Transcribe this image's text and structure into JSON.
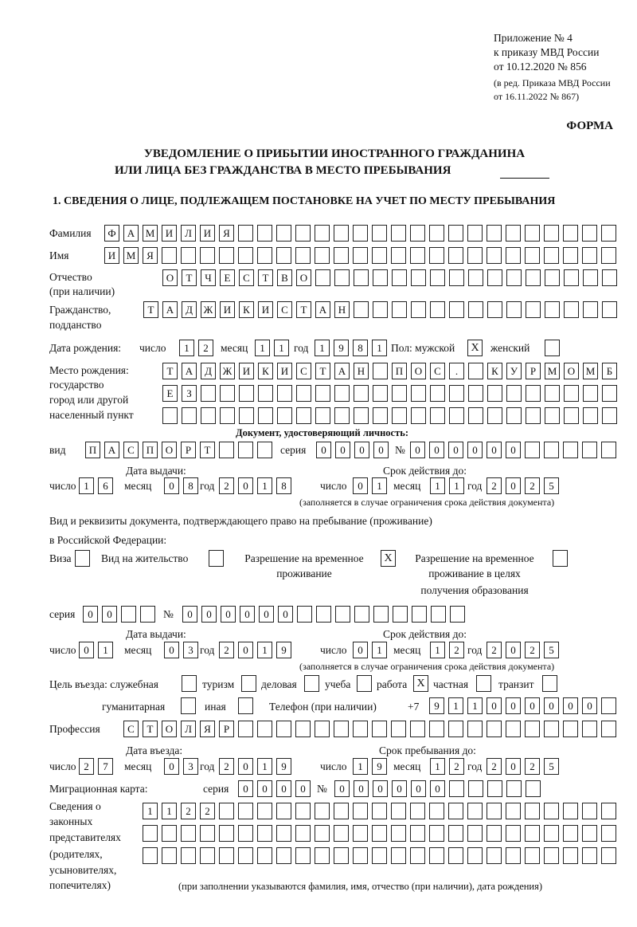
{
  "header": {
    "appendix": [
      "Приложение № 4",
      "к приказу МВД России",
      "от 10.12.2020 № 856"
    ],
    "revision": [
      "(в ред. Приказа МВД России",
      "от 16.11.2022 № 867)"
    ],
    "form_label": "ФОРМА",
    "title_line1": "УВЕДОМЛЕНИЕ О ПРИБЫТИИ ИНОСТРАННОГО ГРАЖДАНИНА",
    "title_line2": "ИЛИ ЛИЦА БЕЗ ГРАЖДАНСТВА В МЕСТО ПРЕБЫВАНИЯ",
    "section1": "1. СВЕДЕНИЯ О ЛИЦЕ, ПОДЛЕЖАЩЕМ ПОСТАНОВКЕ НА УЧЕТ ПО МЕСТУ ПРЕБЫВАНИЯ"
  },
  "labels": {
    "surname": "Фамилия",
    "name": "Имя",
    "patronymic": "Отчество",
    "patronymic_note": "(при наличии)",
    "citizenship": "Гражданство,",
    "citizenship2": "подданство",
    "birth_date": "Дата рождения:",
    "day": "число",
    "month": "месяц",
    "year": "год",
    "sex": "Пол: мужской",
    "female": "женский",
    "birth_place": [
      "Место рождения:",
      "государство",
      "город или другой",
      "населенный пункт"
    ],
    "id_doc": "Документ, удостоверяющий личность:",
    "kind": "вид",
    "series": "серия",
    "number": "№",
    "issue_date": "Дата выдачи:",
    "valid_until": "Срок действия до:",
    "validity_note": "(заполняется в случае ограничения срока действия документа)",
    "right_doc1": "Вид и реквизиты документа, подтверждающего право на пребывание (проживание)",
    "right_doc2": "в Российской Федерации:",
    "visa": "Виза",
    "residence": "Вид на жительство",
    "temp_permit": [
      "Разрешение на временное",
      "проживание"
    ],
    "temp_permit_edu": [
      "Разрешение на временное",
      "проживание в целях",
      "получения образования"
    ],
    "purpose": "Цель въезда: служебная",
    "tourism": "туризм",
    "business": "деловая",
    "study": "учеба",
    "work": "работа",
    "private": "частная",
    "transit": "транзит",
    "humanitarian": "гуманитарная",
    "other": "иная",
    "phone": "Телефон (при наличии)",
    "phone_prefix": "+7",
    "profession": "Профессия",
    "entry_date": "Дата въезда:",
    "stay_until": "Срок пребывания до:",
    "migration_card": "Миграционная карта:",
    "representatives": [
      "Сведения о",
      "законных",
      "представителях",
      "(родителях,",
      "усыновителях,",
      "попечителях)"
    ],
    "repr_note": "(при заполнении указываются фамилия, имя, отчество (при наличии), дата рождения)"
  },
  "values": {
    "surname": "ФАМИЛИЯ",
    "name": "ИМЯ",
    "patronymic": "ОТЧЕСТВО",
    "citizenship": "ТАДЖИКИСТАН",
    "birth_day": "12",
    "birth_month": "11",
    "birth_year": "1981",
    "male": "X",
    "female": "",
    "birth_place1": "ТАДЖИКИСТАН ПОС. КУРМОМБ",
    "birth_place2": "ЕЗ",
    "birth_place3": "",
    "doc_kind": "ПАСПОРТ",
    "doc_series": "0000",
    "doc_number": "000000",
    "doc_issue_day": "16",
    "doc_issue_month": "08",
    "doc_issue_year": "2018",
    "doc_valid_day": "01",
    "doc_valid_month": "11",
    "doc_valid_year": "2025",
    "visa": "",
    "residence": "",
    "temp_permit": "X",
    "temp_permit_edu": "",
    "right_series": "00",
    "right_number": "000000",
    "right_issue_day": "01",
    "right_issue_month": "03",
    "right_issue_year": "2019",
    "right_valid_day": "01",
    "right_valid_month": "12",
    "right_valid_year": "2025",
    "p_service": "",
    "p_tourism": "",
    "p_business": "",
    "p_study": "",
    "p_work": "X",
    "p_private": "",
    "p_transit": "",
    "p_humanitarian": "",
    "p_other": "",
    "phone": "911000000",
    "profession": "СТОЛЯР",
    "entry_day": "27",
    "entry_month": "03",
    "entry_year": "2019",
    "stay_day": "19",
    "stay_month": "12",
    "stay_year": "2025",
    "mc_series": "0000",
    "mc_number": "000000",
    "repr1": "1122",
    "repr2": "",
    "repr3": ""
  }
}
